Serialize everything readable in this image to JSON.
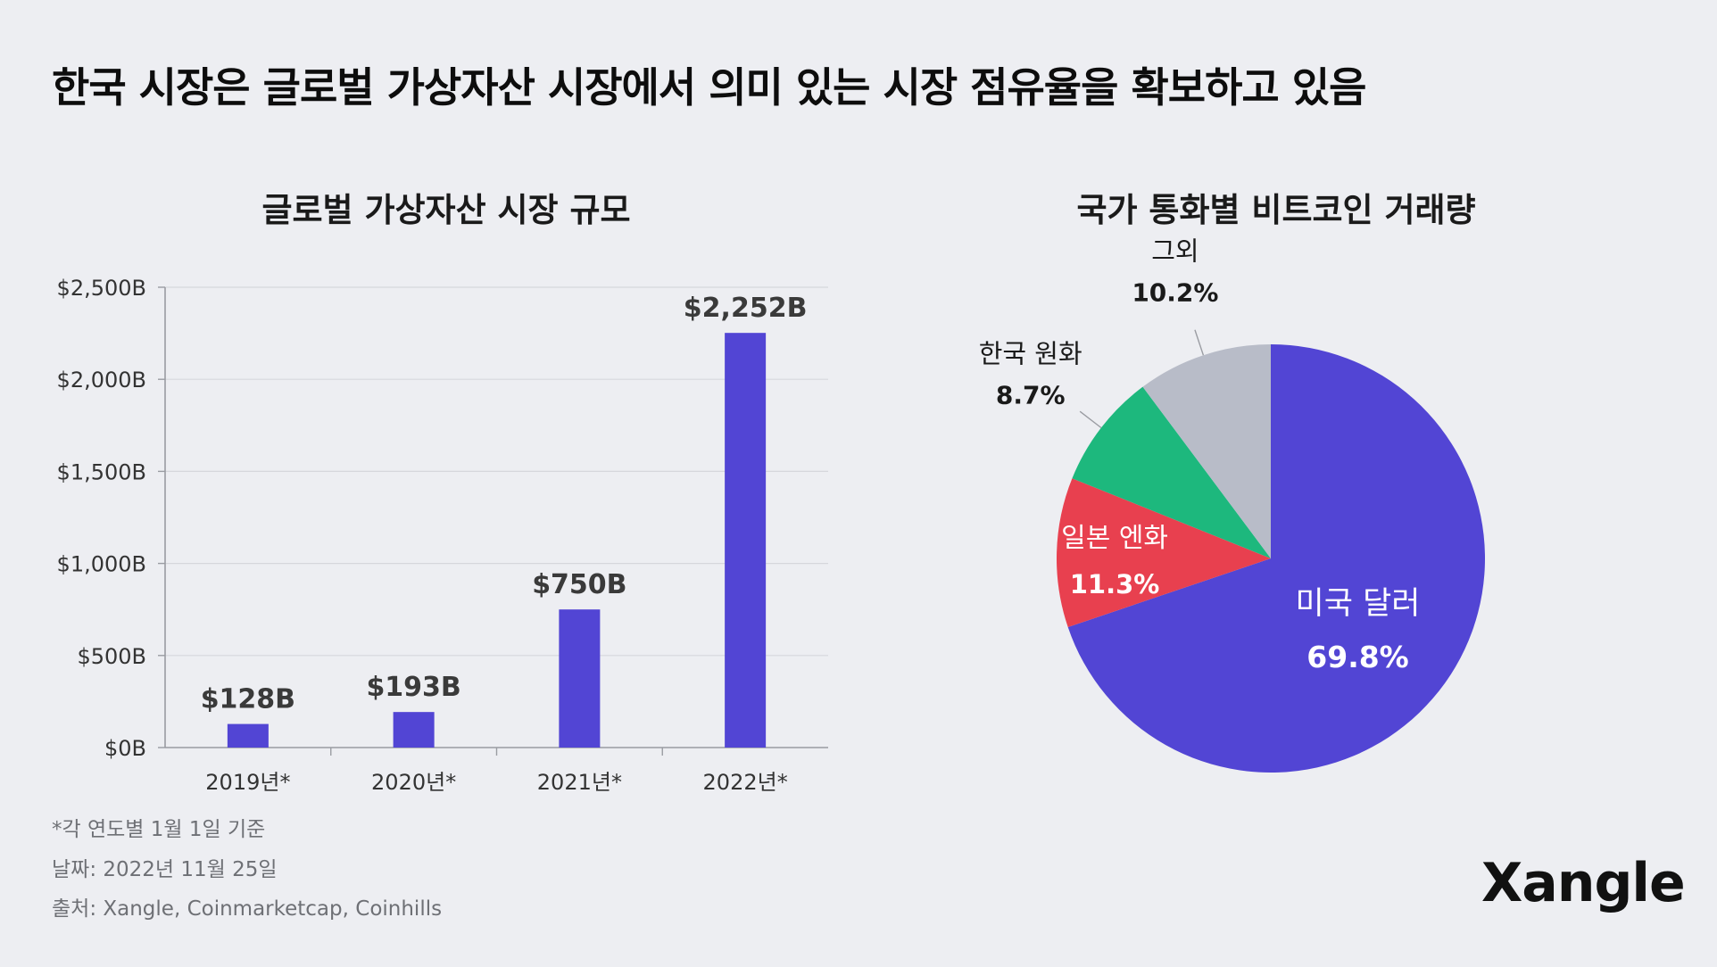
{
  "title": "한국 시장은 글로벌 가상자산 시장에서 의미 있는 시장 점유율을 확보하고 있음",
  "chart_data": [
    {
      "type": "bar",
      "title": "글로벌 가상자산 시장 규모",
      "categories": [
        "2019년*",
        "2020년*",
        "2021년*",
        "2022년*"
      ],
      "values": [
        128,
        193,
        750,
        2252
      ],
      "value_labels": [
        "$128B",
        "$193B",
        "$750B",
        "$2,252B"
      ],
      "ylim": [
        0,
        2500
      ],
      "yticks": [
        0,
        500,
        1000,
        1500,
        2000,
        2500
      ],
      "ytick_labels": [
        "$0B",
        "$500B",
        "$1,000B",
        "$1,500B",
        "$2,000B",
        "$2,500B"
      ],
      "grid": true,
      "bar_color": "#5245d4",
      "xlabel": "",
      "ylabel": ""
    },
    {
      "type": "pie",
      "title": "국가 통화별 비트코인 거래량",
      "slices": [
        {
          "label": "미국 달러",
          "value": 69.8,
          "value_label": "69.8%",
          "color": "#5245d4"
        },
        {
          "label": "일본 엔화",
          "value": 11.3,
          "value_label": "11.3%",
          "color": "#e8404f"
        },
        {
          "label": "한국 원화",
          "value": 8.7,
          "value_label": "8.7%",
          "color": "#1db87d"
        },
        {
          "label": "그외",
          "value": 10.2,
          "value_label": "10.2%",
          "color": "#b8bcc8"
        }
      ]
    }
  ],
  "notes": {
    "footnote": "*각 연도별 1월 1일 기준",
    "date": "날짜: 2022년 11월 25일",
    "source": "출처: Xangle, Coinmarketcap, Coinhills"
  },
  "logo": "Xangle"
}
